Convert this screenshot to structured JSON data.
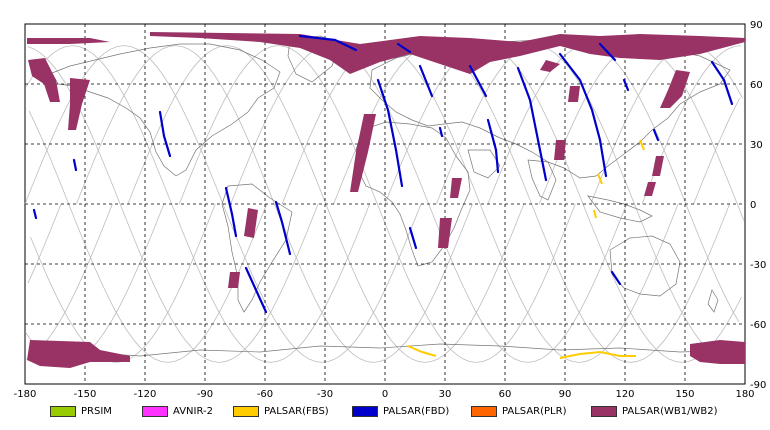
{
  "map": {
    "lon_ticks": [
      "-180",
      "-150",
      "-120",
      "-90",
      "-60",
      "-30",
      "0",
      "30",
      "60",
      "90",
      "120",
      "150",
      "180"
    ],
    "lat_ticks": [
      "90",
      "60",
      "30",
      "0",
      "-30",
      "-60",
      "-90"
    ],
    "colors": {
      "grid": "#000000",
      "coast": "#777777",
      "orbit": "#bdbdbd",
      "prsim": "#99cc00",
      "avnir2": "#ff33ff",
      "fbs": "#ffcc00",
      "fbd": "#0000cc",
      "plr": "#ff6600",
      "wb": "#993366"
    }
  },
  "legend": [
    {
      "label": "PRSIM",
      "color": "#99cc00"
    },
    {
      "label": "AVNIR-2",
      "color": "#ff33ff"
    },
    {
      "label": "PALSAR(FBS)",
      "color": "#ffcc00"
    },
    {
      "label": "PALSAR(FBD)",
      "color": "#0000cc"
    },
    {
      "label": "PALSAR(PLR)",
      "color": "#ff6600"
    },
    {
      "label": "PALSAR(WB1/WB2)",
      "color": "#993366"
    }
  ]
}
